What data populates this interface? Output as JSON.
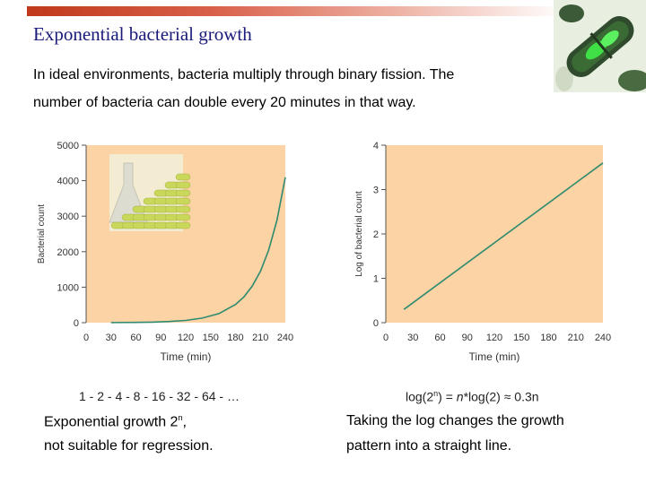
{
  "slide": {
    "title": "Exponential bacterial growth",
    "intro_line1": "In ideal environments, bacteria multiply through binary fission. The",
    "intro_line2": "number of bacteria can double every 20 minutes in that way."
  },
  "colors": {
    "plot_bg": "#fcd3a4",
    "line": "#2e8b70",
    "title": "#1a1a7a",
    "bar_accent": "#c0391b",
    "pellet": "#c9d75a"
  },
  "pellet_illustration": {
    "column_counts": [
      1,
      2,
      3,
      4,
      5,
      6,
      7
    ]
  },
  "chart_data": [
    {
      "type": "line",
      "xlabel": "Time (min)",
      "ylabel": "Bacterial count",
      "xlim": [
        0,
        240
      ],
      "ylim": [
        0,
        5000
      ],
      "x_ticks": [
        0,
        30,
        60,
        90,
        120,
        150,
        180,
        210,
        240
      ],
      "y_ticks": [
        0,
        1000,
        2000,
        3000,
        4000,
        5000
      ],
      "grid": false,
      "series": [
        {
          "x": [
            30,
            60,
            80,
            100,
            120,
            140,
            160,
            180,
            190,
            200,
            210,
            220,
            230,
            240
          ],
          "y": [
            2,
            8,
            16,
            32,
            64,
            128,
            256,
            512,
            724,
            1024,
            1448,
            2048,
            2896,
            4096
          ]
        }
      ]
    },
    {
      "type": "line",
      "xlabel": "Time (min)",
      "ylabel": "Log of bacterial count",
      "xlim": [
        0,
        240
      ],
      "ylim": [
        0,
        4
      ],
      "x_ticks": [
        0,
        30,
        60,
        90,
        120,
        150,
        180,
        210,
        240
      ],
      "y_ticks": [
        0,
        1,
        2,
        3,
        4
      ],
      "grid": false,
      "series": [
        {
          "x": [
            20,
            240
          ],
          "y": [
            0.3,
            3.6
          ]
        }
      ]
    }
  ],
  "captions": {
    "sequence": "1 - 2 - 4 - 8 - 16 - 32 - 64 - …",
    "formula_log": "log(2",
    "formula_sup1": "n",
    "formula_rest": ") = ",
    "formula_n": "n",
    "formula_tail": "*log(2) ≈ 0.3n",
    "left_line1": "Exponential growth 2",
    "left_sup": "n",
    "left_line1_end": ",",
    "left_line2": "not suitable for regression.",
    "right_line1": "Taking the log changes the growth",
    "right_line2": "pattern into a straight line."
  }
}
